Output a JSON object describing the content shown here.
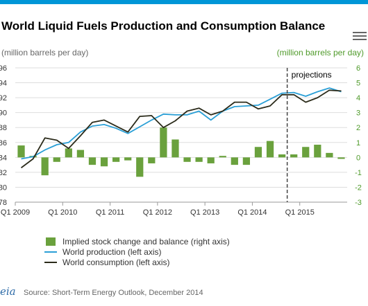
{
  "title": "World Liquid Fuels Production and Consumption Balance",
  "left_unit": "(million barrels per day)",
  "right_unit": "(million barrels per day)",
  "menu_icon": "hamburger-menu-icon",
  "source": "Source: Short-Term Energy Outlook, December 2014",
  "logo": "eia",
  "colors": {
    "production": "#2a9fd6",
    "consumption": "#2b2b1a",
    "stock_bars": "#6aa13d",
    "right_axis": "#4f9a2a",
    "brand_bar": "#0096d7"
  },
  "chart_data": {
    "type": "bar",
    "x_tick_labels": [
      "Q1 2009",
      "Q1 2010",
      "Q1 2011",
      "Q1 2012",
      "Q1 2013",
      "Q1 2014",
      "Q1 2015"
    ],
    "x": [
      "Q1 2009",
      "Q2 2009",
      "Q3 2009",
      "Q4 2009",
      "Q1 2010",
      "Q2 2010",
      "Q3 2010",
      "Q4 2010",
      "Q1 2011",
      "Q2 2011",
      "Q3 2011",
      "Q4 2011",
      "Q1 2012",
      "Q2 2012",
      "Q3 2012",
      "Q4 2012",
      "Q1 2013",
      "Q2 2013",
      "Q3 2013",
      "Q4 2013",
      "Q1 2014",
      "Q2 2014",
      "Q3 2014",
      "Q4 2014",
      "Q1 2015",
      "Q2 2015",
      "Q3 2015",
      "Q4 2015"
    ],
    "left_axis": {
      "ylim": [
        78,
        96
      ],
      "ticks": [
        78,
        80,
        82,
        84,
        86,
        88,
        90,
        92,
        94,
        96
      ]
    },
    "right_axis": {
      "ylim": [
        -3,
        6
      ],
      "ticks": [
        -3,
        -2,
        -1,
        0,
        1,
        2,
        3,
        4,
        5,
        6
      ]
    },
    "grid": true,
    "projection_start": "Q4 2014",
    "projection_label": "projections",
    "legend_position": "bottom",
    "series": [
      {
        "name": "Implied stock change and balance (right axis)",
        "kind": "bar",
        "axis": "right",
        "values": [
          0.8,
          0.1,
          -1.2,
          -0.3,
          0.6,
          0.5,
          -0.5,
          -0.6,
          -0.3,
          -0.2,
          -1.3,
          -0.4,
          2.0,
          1.2,
          -0.3,
          -0.3,
          -0.4,
          0.1,
          -0.5,
          -0.5,
          0.7,
          1.1,
          0.2,
          0.2,
          0.7,
          0.85,
          0.3,
          -0.1
        ]
      },
      {
        "name": "World production (left axis)",
        "kind": "line",
        "axis": "left",
        "values": [
          83.8,
          84.1,
          85.0,
          85.7,
          86.0,
          87.4,
          88.2,
          88.4,
          87.9,
          87.2,
          88.1,
          89.0,
          89.8,
          89.7,
          89.7,
          90.2,
          89.0,
          90.2,
          90.8,
          90.9,
          91.0,
          91.8,
          92.6,
          92.7,
          92.2,
          92.8,
          93.3,
          92.8
        ]
      },
      {
        "name": "World consumption (left axis)",
        "kind": "line",
        "axis": "left",
        "values": [
          82.6,
          83.8,
          86.6,
          86.3,
          85.2,
          86.9,
          88.7,
          89.0,
          88.2,
          87.4,
          89.5,
          89.6,
          88.0,
          88.9,
          90.2,
          90.6,
          89.7,
          90.2,
          91.4,
          91.4,
          90.5,
          90.9,
          92.4,
          92.4,
          91.4,
          92.0,
          93.0,
          92.9
        ]
      }
    ]
  }
}
